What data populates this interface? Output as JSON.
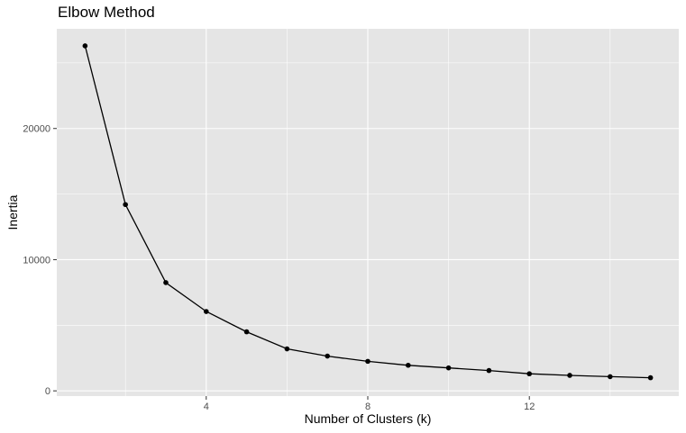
{
  "chart_data": {
    "type": "line",
    "title": "Elbow Method",
    "xlabel": "Number of Clusters (k)",
    "ylabel": "Inertia",
    "x": [
      1,
      2,
      3,
      4,
      5,
      6,
      7,
      8,
      9,
      10,
      11,
      12,
      13,
      14,
      15
    ],
    "series": [
      {
        "values": [
          26300,
          14200,
          8250,
          6050,
          4500,
          3200,
          2650,
          2250,
          1950,
          1750,
          1550,
          1300,
          1180,
          1080,
          1000
        ]
      }
    ],
    "xlim": [
      0.3,
      15.7
    ],
    "ylim": [
      -400,
      27600
    ],
    "x_ticks": [
      4,
      8,
      12
    ],
    "x_tick_labels": [
      "4",
      "8",
      "12"
    ],
    "y_ticks": [
      0,
      10000,
      20000
    ],
    "y_tick_labels": [
      "0",
      "10000",
      "20000"
    ],
    "grid": true,
    "legend": "none",
    "colors": {
      "panel": "#e5e5e5",
      "grid": "#ffffff",
      "line": "#000000",
      "tick_text": "#4d4d4d"
    }
  }
}
